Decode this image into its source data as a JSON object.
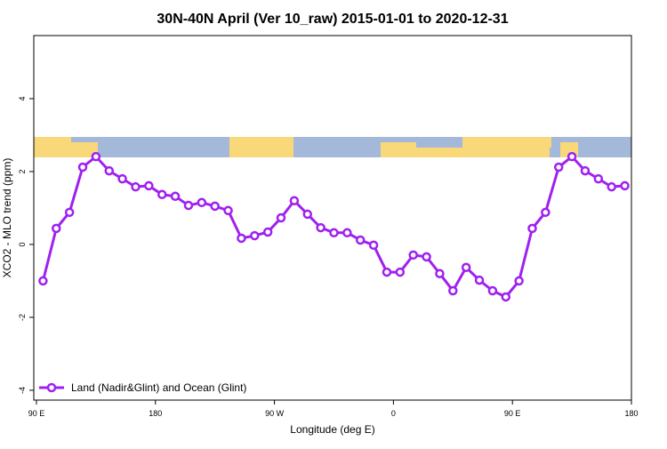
{
  "chart_data": {
    "type": "line",
    "title": "30N-40N April (Ver 10_raw)   2015-01-01 to 2020-12-31",
    "x_label": "Longitude (deg E)",
    "y_label": "XCO2 - MLO trend (ppm)",
    "x": [
      95,
      105,
      115,
      125,
      135,
      145,
      155,
      165,
      175,
      185,
      195,
      205,
      215,
      225,
      235,
      245,
      255,
      265,
      275,
      285,
      295,
      305,
      315,
      325,
      335,
      345,
      355,
      365,
      375,
      385,
      395,
      405,
      415,
      425,
      435,
      445,
      455,
      465,
      475,
      485,
      495,
      505,
      515,
      525,
      535
    ],
    "series": [
      {
        "name": "Land (Nadir&Glint) and Ocean (Glint)",
        "color": "#a020f0",
        "values": [
          -1.0,
          0.44,
          0.88,
          2.12,
          2.41,
          2.02,
          1.8,
          1.58,
          1.61,
          1.37,
          1.32,
          1.07,
          1.15,
          1.05,
          0.93,
          0.17,
          0.24,
          0.34,
          0.73,
          1.2,
          0.83,
          0.46,
          0.32,
          0.32,
          0.12,
          -0.02,
          -0.76,
          -0.76,
          -0.29,
          -0.34,
          -0.8,
          -1.27,
          -0.63,
          -0.98,
          -1.27,
          -1.44,
          -1.0,
          0.44,
          0.88,
          2.12,
          2.41,
          2.02,
          1.8,
          1.58,
          1.61
        ]
      }
    ],
    "xlim": [
      88,
      540
    ],
    "xticks": [
      {
        "value": 90,
        "label": "90 E"
      },
      180,
      {
        "value": 270,
        "label": "90 W"
      },
      {
        "value": 360,
        "label": "0"
      },
      {
        "value": 450,
        "label": "90 E"
      },
      {
        "value": 540,
        "label": "180"
      }
    ],
    "ylim": [
      -4.27,
      5.73
    ],
    "yticks": [
      -4,
      -2,
      0,
      2,
      4
    ],
    "legend": "bottomleft"
  }
}
